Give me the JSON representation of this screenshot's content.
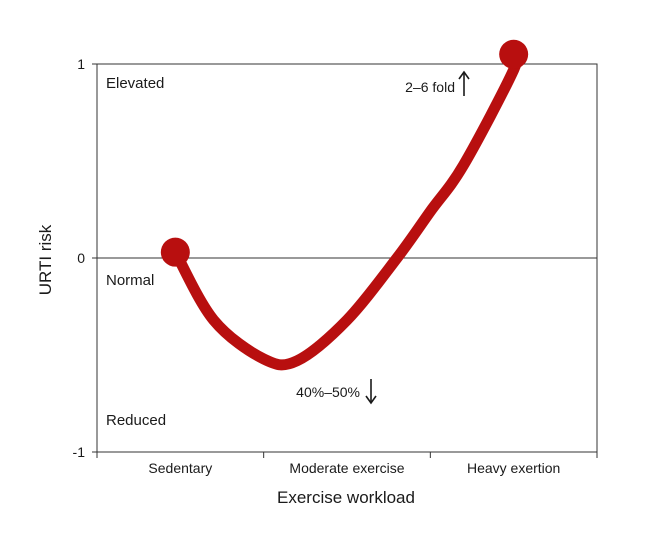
{
  "chart_data": {
    "type": "line",
    "title": "",
    "xlabel": "Exercise workload",
    "ylabel": "URTI risk",
    "categories": [
      "Sedentary",
      "Moderate exercise",
      "Heavy exertion"
    ],
    "yticks": [
      "1",
      "0",
      "-1"
    ],
    "ylim": [
      -1,
      1
    ],
    "xlim": [
      0,
      3
    ],
    "grid": false,
    "zero_line": true,
    "series": [
      {
        "color": "#b80f0f",
        "x": [
          0.47,
          0.7,
          1.0,
          1.2,
          1.5,
          1.8,
          2.0,
          2.2,
          2.5,
          2.5
        ],
        "y": [
          0.03,
          -0.32,
          -0.52,
          -0.53,
          -0.32,
          0.0,
          0.24,
          0.48,
          0.97,
          1.05
        ],
        "markers": [
          {
            "x": 0.47,
            "y": 0.03
          },
          {
            "x": 2.5,
            "y": 1.05
          }
        ]
      }
    ],
    "region_labels": {
      "elevated": "Elevated",
      "normal": "Normal",
      "reduced": "Reduced"
    },
    "annotations": {
      "increase": "2–6 fold",
      "decrease": "40%–50%"
    }
  }
}
